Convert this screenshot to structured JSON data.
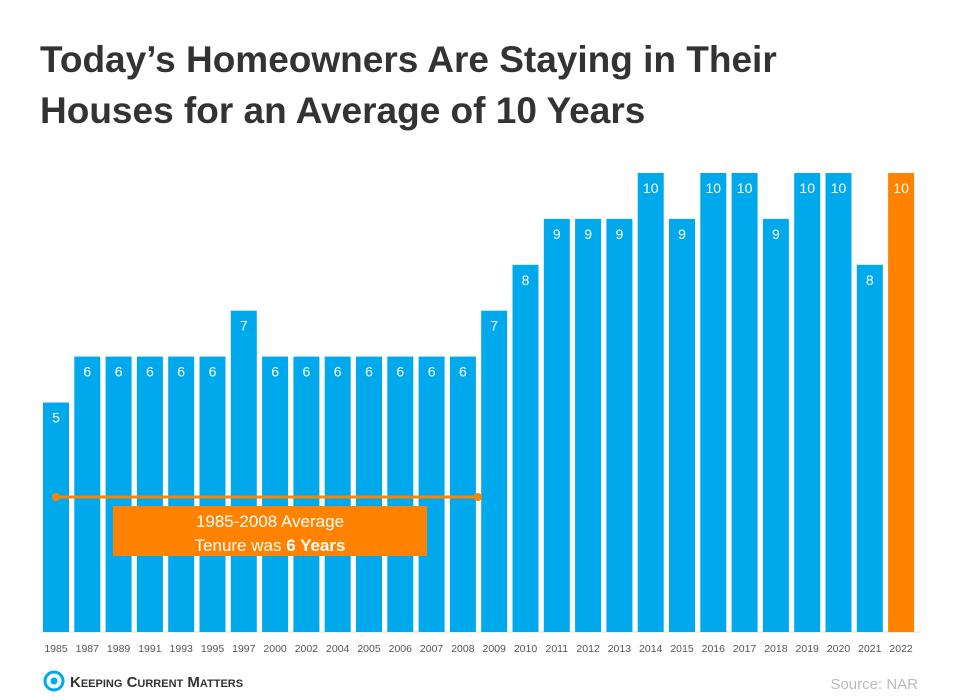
{
  "chart_data": {
    "type": "bar",
    "title": [
      "Today’s Homeowners Are Staying in Their",
      "Houses for an Average of 10 Years"
    ],
    "categories": [
      "1985",
      "1987",
      "1989",
      "1991",
      "1993",
      "1995",
      "1997",
      "2000",
      "2002",
      "2004",
      "2005",
      "2006",
      "2007",
      "2008",
      "2009",
      "2010",
      "2011",
      "2012",
      "2013",
      "2014",
      "2015",
      "2016",
      "2017",
      "2018",
      "2019",
      "2020",
      "2021",
      "2022"
    ],
    "values": [
      5,
      6,
      6,
      6,
      6,
      6,
      7,
      6,
      6,
      6,
      6,
      6,
      6,
      6,
      7,
      8,
      9,
      9,
      9,
      10,
      9,
      10,
      10,
      9,
      10,
      10,
      8,
      10
    ],
    "colors": [
      "#00a9ec",
      "#00a9ec",
      "#00a9ec",
      "#00a9ec",
      "#00a9ec",
      "#00a9ec",
      "#00a9ec",
      "#00a9ec",
      "#00a9ec",
      "#00a9ec",
      "#00a9ec",
      "#00a9ec",
      "#00a9ec",
      "#00a9ec",
      "#00a9ec",
      "#00a9ec",
      "#00a9ec",
      "#00a9ec",
      "#00a9ec",
      "#00a9ec",
      "#00a9ec",
      "#00a9ec",
      "#00a9ec",
      "#00a9ec",
      "#00a9ec",
      "#00a9ec",
      "#00a9ec",
      "#ff8300"
    ],
    "annotation": {
      "line1": "1985-2008 Average",
      "line2": "Tenure was ",
      "bold": "6 Years"
    },
    "source": "Source: NAR",
    "brand": "Keeping Current Matters"
  }
}
